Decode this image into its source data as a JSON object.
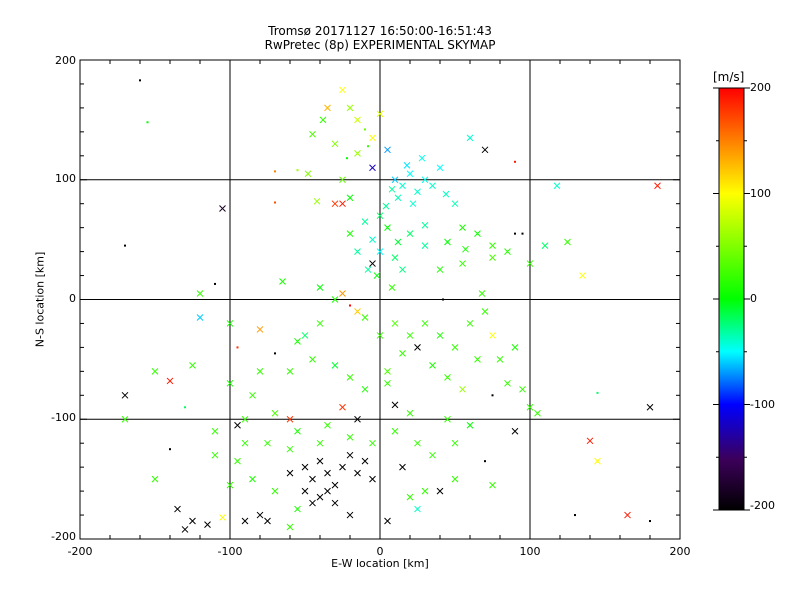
{
  "chart_data": {
    "type": "scatter",
    "title": "Tromsø 20171127 16:50:00-16:51:43",
    "subtitle": "RwPretec (8p) EXPERIMENTAL SKYMAP",
    "xlabel": "E-W location [km]",
    "ylabel": "N-S location [km]",
    "xlim": [
      -200,
      200
    ],
    "ylim": [
      -200,
      200
    ],
    "grid": true,
    "x_ticks": [
      "-200",
      "-100",
      "0",
      "100",
      "200"
    ],
    "y_ticks": [
      "-200",
      "-100",
      "0",
      "100",
      "200"
    ],
    "grid_values": [
      -100,
      0,
      100
    ],
    "colorbar": {
      "label": "[m/s]",
      "range": [
        -200,
        200
      ],
      "ticks": [
        "-200",
        "-100",
        "0",
        "100",
        "200"
      ],
      "colors": [
        "#000000",
        "#3c005a",
        "#0000ff",
        "#00ffff",
        "#00ff00",
        "#ffff00",
        "#ff0000"
      ],
      "placement": "right"
    },
    "points": [
      {
        "x": -160,
        "y": 183,
        "v": -200,
        "m": "dot"
      },
      {
        "x": -155,
        "y": 148,
        "v": 0,
        "m": "dot"
      },
      {
        "x": -170,
        "y": 45,
        "v": -200,
        "m": "dot"
      },
      {
        "x": -105,
        "y": 76,
        "v": -180,
        "m": "x"
      },
      {
        "x": -110,
        "y": 13,
        "v": -200,
        "m": "dot"
      },
      {
        "x": -70,
        "y": 107,
        "v": 150,
        "m": "dot"
      },
      {
        "x": -55,
        "y": 108,
        "v": 60,
        "m": "dot"
      },
      {
        "x": -70,
        "y": 81,
        "v": 170,
        "m": "dot"
      },
      {
        "x": -48,
        "y": 105,
        "v": 50,
        "m": "x"
      },
      {
        "x": -42,
        "y": 82,
        "v": 60,
        "m": "x"
      },
      {
        "x": -30,
        "y": 80,
        "v": 180,
        "m": "x"
      },
      {
        "x": -25,
        "y": 80,
        "v": 190,
        "m": "x"
      },
      {
        "x": -20,
        "y": 85,
        "v": 0,
        "m": "x"
      },
      {
        "x": -38,
        "y": 150,
        "v": 20,
        "m": "x"
      },
      {
        "x": -35,
        "y": 160,
        "v": 130,
        "m": "x"
      },
      {
        "x": -25,
        "y": 175,
        "v": 100,
        "m": "x"
      },
      {
        "x": -20,
        "y": 160,
        "v": 60,
        "m": "x"
      },
      {
        "x": -15,
        "y": 150,
        "v": 80,
        "m": "x"
      },
      {
        "x": -10,
        "y": 142,
        "v": 40,
        "m": "dot"
      },
      {
        "x": -5,
        "y": 135,
        "v": 100,
        "m": "x"
      },
      {
        "x": 0,
        "y": 155,
        "v": 90,
        "m": "x"
      },
      {
        "x": -8,
        "y": 128,
        "v": 20,
        "m": "dot"
      },
      {
        "x": -15,
        "y": 122,
        "v": 60,
        "m": "x"
      },
      {
        "x": -22,
        "y": 118,
        "v": 0,
        "m": "dot"
      },
      {
        "x": -30,
        "y": 130,
        "v": 50,
        "m": "x"
      },
      {
        "x": -45,
        "y": 138,
        "v": 30,
        "m": "x"
      },
      {
        "x": -25,
        "y": 100,
        "v": 40,
        "m": "x"
      },
      {
        "x": -5,
        "y": 110,
        "v": -120,
        "m": "x"
      },
      {
        "x": 5,
        "y": 125,
        "v": -70,
        "m": "x"
      },
      {
        "x": 10,
        "y": 100,
        "v": -60,
        "m": "x"
      },
      {
        "x": 15,
        "y": 95,
        "v": -40,
        "m": "x"
      },
      {
        "x": 20,
        "y": 105,
        "v": -50,
        "m": "x"
      },
      {
        "x": 25,
        "y": 90,
        "v": -40,
        "m": "x"
      },
      {
        "x": 30,
        "y": 100,
        "v": -45,
        "m": "x"
      },
      {
        "x": 35,
        "y": 95,
        "v": -40,
        "m": "x"
      },
      {
        "x": 40,
        "y": 110,
        "v": -50,
        "m": "x"
      },
      {
        "x": 12,
        "y": 85,
        "v": -35,
        "m": "x"
      },
      {
        "x": 22,
        "y": 80,
        "v": -40,
        "m": "x"
      },
      {
        "x": 8,
        "y": 92,
        "v": -30,
        "m": "x"
      },
      {
        "x": 18,
        "y": 112,
        "v": -55,
        "m": "x"
      },
      {
        "x": 28,
        "y": 118,
        "v": -45,
        "m": "x"
      },
      {
        "x": 44,
        "y": 88,
        "v": -38,
        "m": "x"
      },
      {
        "x": 50,
        "y": 80,
        "v": -35,
        "m": "x"
      },
      {
        "x": 4,
        "y": 78,
        "v": -30,
        "m": "x"
      },
      {
        "x": 0,
        "y": 70,
        "v": -20,
        "m": "x"
      },
      {
        "x": -10,
        "y": 65,
        "v": -30,
        "m": "x"
      },
      {
        "x": 5,
        "y": 60,
        "v": 0,
        "m": "x"
      },
      {
        "x": -5,
        "y": 50,
        "v": -40,
        "m": "x"
      },
      {
        "x": -15,
        "y": 40,
        "v": -30,
        "m": "x"
      },
      {
        "x": -20,
        "y": 55,
        "v": 10,
        "m": "x"
      },
      {
        "x": 0,
        "y": 40,
        "v": -50,
        "m": "x"
      },
      {
        "x": 10,
        "y": 35,
        "v": -20,
        "m": "x"
      },
      {
        "x": -5,
        "y": 30,
        "v": -200,
        "m": "x"
      },
      {
        "x": -8,
        "y": 25,
        "v": -30,
        "m": "x"
      },
      {
        "x": 15,
        "y": 25,
        "v": -25,
        "m": "x"
      },
      {
        "x": 60,
        "y": 135,
        "v": -40,
        "m": "x"
      },
      {
        "x": 70,
        "y": 125,
        "v": -200,
        "m": "x"
      },
      {
        "x": 90,
        "y": 115,
        "v": 190,
        "m": "dot"
      },
      {
        "x": 55,
        "y": 60,
        "v": 10,
        "m": "x"
      },
      {
        "x": 65,
        "y": 55,
        "v": 5,
        "m": "x"
      },
      {
        "x": 75,
        "y": 45,
        "v": 20,
        "m": "x"
      },
      {
        "x": 85,
        "y": 40,
        "v": 15,
        "m": "x"
      },
      {
        "x": 95,
        "y": 55,
        "v": -200,
        "m": "dot"
      },
      {
        "x": 100,
        "y": 30,
        "v": 20,
        "m": "x"
      },
      {
        "x": 110,
        "y": 45,
        "v": -20,
        "m": "x"
      },
      {
        "x": 125,
        "y": 48,
        "v": 20,
        "m": "x"
      },
      {
        "x": 135,
        "y": 20,
        "v": 100,
        "m": "x"
      },
      {
        "x": 68,
        "y": 5,
        "v": 20,
        "m": "x"
      },
      {
        "x": 42,
        "y": 0,
        "v": -200,
        "m": "dot"
      },
      {
        "x": 57,
        "y": 42,
        "v": 10,
        "m": "x"
      },
      {
        "x": 185,
        "y": 95,
        "v": 190,
        "m": "x"
      },
      {
        "x": 118,
        "y": 95,
        "v": -40,
        "m": "x"
      },
      {
        "x": -120,
        "y": 5,
        "v": 20,
        "m": "x"
      },
      {
        "x": -65,
        "y": 15,
        "v": 10,
        "m": "x"
      },
      {
        "x": -40,
        "y": 10,
        "v": 0,
        "m": "x"
      },
      {
        "x": -25,
        "y": 5,
        "v": 140,
        "m": "x"
      },
      {
        "x": -20,
        "y": -5,
        "v": 200,
        "m": "dot"
      },
      {
        "x": -15,
        "y": -10,
        "v": 120,
        "m": "x"
      },
      {
        "x": -10,
        "y": -15,
        "v": 20,
        "m": "x"
      },
      {
        "x": -120,
        "y": -15,
        "v": -60,
        "m": "x"
      },
      {
        "x": -100,
        "y": -20,
        "v": 10,
        "m": "x"
      },
      {
        "x": -80,
        "y": -25,
        "v": 140,
        "m": "x"
      },
      {
        "x": -95,
        "y": -40,
        "v": 180,
        "m": "dot"
      },
      {
        "x": -70,
        "y": -45,
        "v": -200,
        "m": "dot"
      },
      {
        "x": -55,
        "y": -35,
        "v": 10,
        "m": "x"
      },
      {
        "x": -45,
        "y": -50,
        "v": 20,
        "m": "x"
      },
      {
        "x": -30,
        "y": -55,
        "v": -10,
        "m": "x"
      },
      {
        "x": -20,
        "y": -65,
        "v": 20,
        "m": "x"
      },
      {
        "x": -10,
        "y": -75,
        "v": 10,
        "m": "x"
      },
      {
        "x": 5,
        "y": -60,
        "v": 30,
        "m": "x"
      },
      {
        "x": 15,
        "y": -45,
        "v": 20,
        "m": "x"
      },
      {
        "x": 25,
        "y": -40,
        "v": -200,
        "m": "x"
      },
      {
        "x": 35,
        "y": -55,
        "v": 10,
        "m": "x"
      },
      {
        "x": 45,
        "y": -65,
        "v": 20,
        "m": "x"
      },
      {
        "x": 55,
        "y": -75,
        "v": 60,
        "m": "x"
      },
      {
        "x": 65,
        "y": -50,
        "v": 20,
        "m": "x"
      },
      {
        "x": 75,
        "y": -30,
        "v": 100,
        "m": "x"
      },
      {
        "x": 90,
        "y": -40,
        "v": 10,
        "m": "x"
      },
      {
        "x": 100,
        "y": -90,
        "v": 20,
        "m": "x"
      },
      {
        "x": -150,
        "y": -60,
        "v": 20,
        "m": "x"
      },
      {
        "x": -140,
        "y": -68,
        "v": 190,
        "m": "x"
      },
      {
        "x": -170,
        "y": -80,
        "v": -200,
        "m": "x"
      },
      {
        "x": -170,
        "y": -100,
        "v": 20,
        "m": "x"
      },
      {
        "x": -125,
        "y": -55,
        "v": 20,
        "m": "x"
      },
      {
        "x": -130,
        "y": -90,
        "v": -20,
        "m": "dot"
      },
      {
        "x": -110,
        "y": -110,
        "v": 20,
        "m": "x"
      },
      {
        "x": -95,
        "y": -105,
        "v": -200,
        "m": "x"
      },
      {
        "x": -90,
        "y": -100,
        "v": 20,
        "m": "x"
      },
      {
        "x": -70,
        "y": -95,
        "v": 30,
        "m": "x"
      },
      {
        "x": -60,
        "y": -100,
        "v": 180,
        "m": "x"
      },
      {
        "x": -55,
        "y": -110,
        "v": 10,
        "m": "x"
      },
      {
        "x": -35,
        "y": -105,
        "v": 20,
        "m": "x"
      },
      {
        "x": -25,
        "y": -90,
        "v": 180,
        "m": "x"
      },
      {
        "x": -15,
        "y": -100,
        "v": -200,
        "m": "x"
      },
      {
        "x": 10,
        "y": -88,
        "v": -200,
        "m": "x"
      },
      {
        "x": 20,
        "y": -95,
        "v": 20,
        "m": "x"
      },
      {
        "x": 45,
        "y": -100,
        "v": 20,
        "m": "x"
      },
      {
        "x": 60,
        "y": -105,
        "v": 0,
        "m": "x"
      },
      {
        "x": 90,
        "y": -110,
        "v": -200,
        "m": "x"
      },
      {
        "x": 105,
        "y": -95,
        "v": 20,
        "m": "x"
      },
      {
        "x": 140,
        "y": -118,
        "v": 190,
        "m": "x"
      },
      {
        "x": 145,
        "y": -135,
        "v": 100,
        "m": "x"
      },
      {
        "x": 180,
        "y": -90,
        "v": -200,
        "m": "x"
      },
      {
        "x": 145,
        "y": -78,
        "v": -20,
        "m": "dot"
      },
      {
        "x": -150,
        "y": -150,
        "v": 20,
        "m": "x"
      },
      {
        "x": -140,
        "y": -125,
        "v": -200,
        "m": "dot"
      },
      {
        "x": -135,
        "y": -175,
        "v": -200,
        "m": "x"
      },
      {
        "x": -125,
        "y": -185,
        "v": -200,
        "m": "x"
      },
      {
        "x": -130,
        "y": -192,
        "v": -200,
        "m": "x"
      },
      {
        "x": -115,
        "y": -188,
        "v": -200,
        "m": "x"
      },
      {
        "x": -105,
        "y": -182,
        "v": 100,
        "m": "x"
      },
      {
        "x": -90,
        "y": -185,
        "v": -200,
        "m": "x"
      },
      {
        "x": -80,
        "y": -180,
        "v": -200,
        "m": "x"
      },
      {
        "x": -75,
        "y": -185,
        "v": -200,
        "m": "x"
      },
      {
        "x": -60,
        "y": -190,
        "v": 20,
        "m": "x"
      },
      {
        "x": -55,
        "y": -175,
        "v": 10,
        "m": "x"
      },
      {
        "x": -60,
        "y": -145,
        "v": -200,
        "m": "x"
      },
      {
        "x": -50,
        "y": -140,
        "v": -200,
        "m": "x"
      },
      {
        "x": -45,
        "y": -150,
        "v": -200,
        "m": "x"
      },
      {
        "x": -40,
        "y": -135,
        "v": -200,
        "m": "x"
      },
      {
        "x": -35,
        "y": -145,
        "v": -200,
        "m": "x"
      },
      {
        "x": -30,
        "y": -155,
        "v": -200,
        "m": "x"
      },
      {
        "x": -25,
        "y": -140,
        "v": -200,
        "m": "x"
      },
      {
        "x": -20,
        "y": -130,
        "v": -200,
        "m": "x"
      },
      {
        "x": -15,
        "y": -145,
        "v": -200,
        "m": "x"
      },
      {
        "x": -10,
        "y": -135,
        "v": -200,
        "m": "x"
      },
      {
        "x": -5,
        "y": -150,
        "v": -200,
        "m": "x"
      },
      {
        "x": -50,
        "y": -160,
        "v": -200,
        "m": "x"
      },
      {
        "x": -45,
        "y": -170,
        "v": -200,
        "m": "x"
      },
      {
        "x": -40,
        "y": -165,
        "v": -200,
        "m": "x"
      },
      {
        "x": -35,
        "y": -160,
        "v": -200,
        "m": "x"
      },
      {
        "x": -30,
        "y": -170,
        "v": -200,
        "m": "x"
      },
      {
        "x": -20,
        "y": -180,
        "v": -200,
        "m": "x"
      },
      {
        "x": 5,
        "y": -185,
        "v": -200,
        "m": "x"
      },
      {
        "x": 15,
        "y": -140,
        "v": -200,
        "m": "x"
      },
      {
        "x": 20,
        "y": -165,
        "v": 20,
        "m": "x"
      },
      {
        "x": 30,
        "y": -160,
        "v": 20,
        "m": "x"
      },
      {
        "x": 25,
        "y": -175,
        "v": -40,
        "m": "x"
      },
      {
        "x": 40,
        "y": -160,
        "v": -200,
        "m": "x"
      },
      {
        "x": 50,
        "y": -150,
        "v": 20,
        "m": "x"
      },
      {
        "x": 70,
        "y": -135,
        "v": -200,
        "m": "dot"
      },
      {
        "x": 75,
        "y": -155,
        "v": 20,
        "m": "x"
      },
      {
        "x": 130,
        "y": -180,
        "v": -200,
        "m": "dot"
      },
      {
        "x": 165,
        "y": -180,
        "v": 190,
        "m": "x"
      },
      {
        "x": 180,
        "y": -185,
        "v": -200,
        "m": "dot"
      },
      {
        "x": 90,
        "y": 55,
        "v": -200,
        "m": "dot"
      },
      {
        "x": 75,
        "y": 35,
        "v": 30,
        "m": "x"
      },
      {
        "x": 55,
        "y": 30,
        "v": 20,
        "m": "x"
      },
      {
        "x": 40,
        "y": 25,
        "v": 10,
        "m": "x"
      },
      {
        "x": 30,
        "y": 45,
        "v": -30,
        "m": "x"
      },
      {
        "x": 20,
        "y": 55,
        "v": -20,
        "m": "x"
      },
      {
        "x": 12,
        "y": 48,
        "v": -10,
        "m": "x"
      },
      {
        "x": 30,
        "y": 62,
        "v": -30,
        "m": "x"
      },
      {
        "x": 45,
        "y": 48,
        "v": 0,
        "m": "x"
      },
      {
        "x": -2,
        "y": 20,
        "v": 0,
        "m": "x"
      },
      {
        "x": 8,
        "y": 10,
        "v": 20,
        "m": "x"
      },
      {
        "x": -30,
        "y": 0,
        "v": 10,
        "m": "x"
      },
      {
        "x": -40,
        "y": -20,
        "v": 20,
        "m": "x"
      },
      {
        "x": -50,
        "y": -30,
        "v": -20,
        "m": "x"
      },
      {
        "x": -60,
        "y": -60,
        "v": 20,
        "m": "x"
      },
      {
        "x": -80,
        "y": -60,
        "v": 20,
        "m": "x"
      },
      {
        "x": -100,
        "y": -70,
        "v": 10,
        "m": "x"
      },
      {
        "x": -85,
        "y": -80,
        "v": 20,
        "m": "x"
      },
      {
        "x": 0,
        "y": -30,
        "v": 20,
        "m": "x"
      },
      {
        "x": 10,
        "y": -20,
        "v": 30,
        "m": "x"
      },
      {
        "x": 20,
        "y": -30,
        "v": 20,
        "m": "x"
      },
      {
        "x": 30,
        "y": -20,
        "v": 20,
        "m": "x"
      },
      {
        "x": 40,
        "y": -30,
        "v": 10,
        "m": "x"
      },
      {
        "x": 50,
        "y": -40,
        "v": 20,
        "m": "x"
      },
      {
        "x": 60,
        "y": -20,
        "v": 20,
        "m": "x"
      },
      {
        "x": 70,
        "y": -10,
        "v": 20,
        "m": "x"
      },
      {
        "x": 80,
        "y": -50,
        "v": 20,
        "m": "x"
      },
      {
        "x": 85,
        "y": -70,
        "v": 20,
        "m": "x"
      },
      {
        "x": 95,
        "y": -75,
        "v": 20,
        "m": "x"
      },
      {
        "x": 75,
        "y": -80,
        "v": -200,
        "m": "dot"
      },
      {
        "x": 5,
        "y": -70,
        "v": 20,
        "m": "x"
      },
      {
        "x": 10,
        "y": -110,
        "v": 20,
        "m": "x"
      },
      {
        "x": 25,
        "y": -120,
        "v": 20,
        "m": "x"
      },
      {
        "x": 35,
        "y": -130,
        "v": 20,
        "m": "x"
      },
      {
        "x": 50,
        "y": -120,
        "v": 20,
        "m": "x"
      },
      {
        "x": -5,
        "y": -120,
        "v": 20,
        "m": "x"
      },
      {
        "x": -20,
        "y": -115,
        "v": 20,
        "m": "x"
      },
      {
        "x": -40,
        "y": -120,
        "v": 20,
        "m": "x"
      },
      {
        "x": -60,
        "y": -125,
        "v": 20,
        "m": "x"
      },
      {
        "x": -75,
        "y": -120,
        "v": 20,
        "m": "x"
      },
      {
        "x": -95,
        "y": -135,
        "v": 20,
        "m": "x"
      },
      {
        "x": -100,
        "y": -155,
        "v": 20,
        "m": "x"
      },
      {
        "x": -85,
        "y": -150,
        "v": 10,
        "m": "x"
      },
      {
        "x": -70,
        "y": -160,
        "v": 20,
        "m": "x"
      },
      {
        "x": -110,
        "y": -130,
        "v": 20,
        "m": "x"
      },
      {
        "x": -90,
        "y": -120,
        "v": 20,
        "m": "x"
      }
    ]
  }
}
